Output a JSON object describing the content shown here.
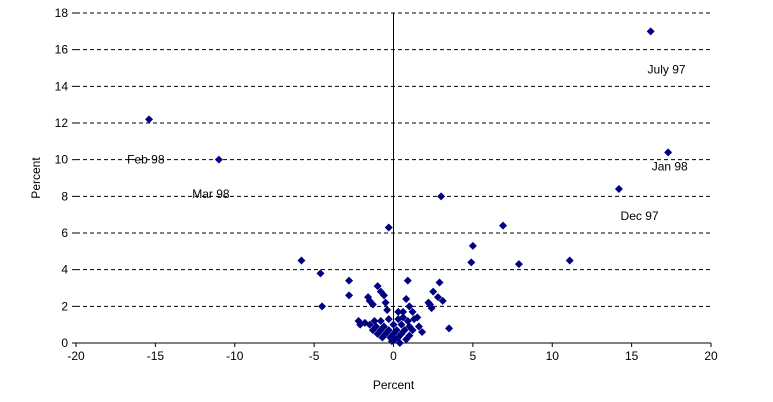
{
  "chart_data": {
    "type": "scatter",
    "title": "",
    "xlabel": "Percent",
    "ylabel": "Percent",
    "xlim": [
      -20,
      20
    ],
    "ylim": [
      0,
      18
    ],
    "x_ticks": [
      -20,
      -15,
      -10,
      -5,
      0,
      5,
      10,
      15,
      20
    ],
    "y_ticks": [
      0,
      2,
      4,
      6,
      8,
      10,
      12,
      14,
      16,
      18
    ],
    "grid": "horizontal dashed",
    "marker_color": "#000080",
    "annotations": [
      {
        "text": "July 97",
        "x": 17.2,
        "y": 14.7
      },
      {
        "text": "Feb 98",
        "x": -15.6,
        "y": 9.8
      },
      {
        "text": "Mar 98",
        "x": -11.5,
        "y": 7.9
      },
      {
        "text": "Jan 98",
        "x": 17.4,
        "y": 9.4
      },
      {
        "text": "Dec 97",
        "x": 15.5,
        "y": 6.7
      }
    ],
    "points": [
      {
        "x": 16.2,
        "y": 17.0
      },
      {
        "x": -15.4,
        "y": 12.2
      },
      {
        "x": -11.0,
        "y": 10.0
      },
      {
        "x": 17.3,
        "y": 10.4
      },
      {
        "x": 14.2,
        "y": 8.4
      },
      {
        "x": 3.0,
        "y": 8.0
      },
      {
        "x": -0.3,
        "y": 6.3
      },
      {
        "x": 6.9,
        "y": 6.4
      },
      {
        "x": 5.0,
        "y": 5.3
      },
      {
        "x": -5.8,
        "y": 4.5
      },
      {
        "x": 4.9,
        "y": 4.4
      },
      {
        "x": 11.1,
        "y": 4.5
      },
      {
        "x": 7.9,
        "y": 4.3
      },
      {
        "x": -4.6,
        "y": 3.8
      },
      {
        "x": -2.8,
        "y": 3.4
      },
      {
        "x": 0.9,
        "y": 3.4
      },
      {
        "x": 2.9,
        "y": 3.3
      },
      {
        "x": -1.0,
        "y": 3.1
      },
      {
        "x": -0.8,
        "y": 2.8
      },
      {
        "x": 2.5,
        "y": 2.8
      },
      {
        "x": -2.8,
        "y": 2.6
      },
      {
        "x": -1.6,
        "y": 2.5
      },
      {
        "x": -0.6,
        "y": 2.6
      },
      {
        "x": 2.8,
        "y": 2.5
      },
      {
        "x": 3.1,
        "y": 2.3
      },
      {
        "x": 0.8,
        "y": 2.4
      },
      {
        "x": -1.5,
        "y": 2.3
      },
      {
        "x": -0.5,
        "y": 2.2
      },
      {
        "x": 2.3,
        "y": 2.1
      },
      {
        "x": -1.3,
        "y": 2.1
      },
      {
        "x": 1.0,
        "y": 2.0
      },
      {
        "x": 2.4,
        "y": 1.9
      },
      {
        "x": 2.2,
        "y": 2.2
      },
      {
        "x": -4.5,
        "y": 2.0
      },
      {
        "x": 0.3,
        "y": 1.7
      },
      {
        "x": 1.2,
        "y": 1.7
      },
      {
        "x": 0.6,
        "y": 1.7
      },
      {
        "x": -0.4,
        "y": 1.8
      },
      {
        "x": 1.5,
        "y": 1.4
      },
      {
        "x": 0.6,
        "y": 1.4
      },
      {
        "x": -2.2,
        "y": 1.2
      },
      {
        "x": -1.8,
        "y": 1.1
      },
      {
        "x": -1.2,
        "y": 1.2
      },
      {
        "x": -0.8,
        "y": 1.2
      },
      {
        "x": -0.3,
        "y": 1.3
      },
      {
        "x": 0.3,
        "y": 1.3
      },
      {
        "x": 0.9,
        "y": 1.2
      },
      {
        "x": 1.3,
        "y": 1.3
      },
      {
        "x": -2.1,
        "y": 1.0
      },
      {
        "x": -1.5,
        "y": 1.0
      },
      {
        "x": -1.1,
        "y": 0.9
      },
      {
        "x": -0.6,
        "y": 0.9
      },
      {
        "x": 0.0,
        "y": 1.0
      },
      {
        "x": 0.5,
        "y": 1.0
      },
      {
        "x": 1.0,
        "y": 0.9
      },
      {
        "x": 1.6,
        "y": 0.9
      },
      {
        "x": 3.5,
        "y": 0.8
      },
      {
        "x": -1.3,
        "y": 0.7
      },
      {
        "x": -0.8,
        "y": 0.7
      },
      {
        "x": -0.3,
        "y": 0.7
      },
      {
        "x": 0.2,
        "y": 0.7
      },
      {
        "x": 0.7,
        "y": 0.7
      },
      {
        "x": 1.2,
        "y": 0.7
      },
      {
        "x": 1.8,
        "y": 0.6
      },
      {
        "x": -1.0,
        "y": 0.5
      },
      {
        "x": -0.5,
        "y": 0.5
      },
      {
        "x": 0.0,
        "y": 0.5
      },
      {
        "x": 0.5,
        "y": 0.5
      },
      {
        "x": 1.0,
        "y": 0.4
      },
      {
        "x": -0.7,
        "y": 0.3
      },
      {
        "x": -0.2,
        "y": 0.3
      },
      {
        "x": 0.3,
        "y": 0.3
      },
      {
        "x": 0.8,
        "y": 0.2
      },
      {
        "x": -0.1,
        "y": 0.1
      },
      {
        "x": 0.4,
        "y": 0.0
      },
      {
        "x": 0.1,
        "y": 0.2
      }
    ]
  }
}
